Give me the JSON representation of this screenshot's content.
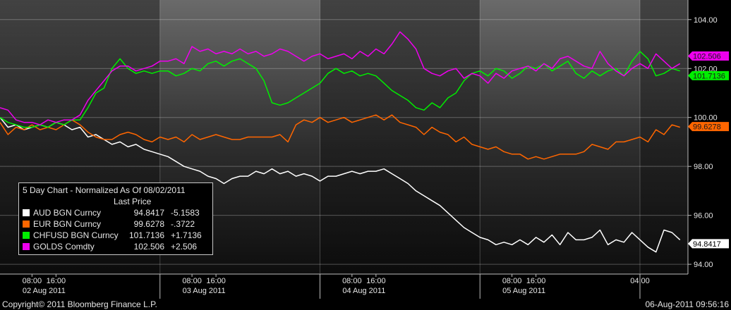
{
  "chart_data": {
    "type": "line",
    "title": "5 Day Chart - Normalized As Of 08/02/2011",
    "subtitle": "Last Price",
    "ylim": [
      93.6,
      104.8
    ],
    "y_ticks": [
      "94.00",
      "96.00",
      "98.00",
      "100.00",
      "102.00",
      "104.00"
    ],
    "y_tick_values": [
      94,
      96,
      98,
      100,
      102,
      104
    ],
    "x_label_top": [
      "08:00",
      "16:00",
      "08:00",
      "16:00",
      "08:00",
      "16:00",
      "08:00",
      "16:00",
      "04:00"
    ],
    "x_label_top_t": [
      2.0,
      3.5,
      12.0,
      13.5,
      22.0,
      23.5,
      32.0,
      33.5,
      40.0
    ],
    "x_label_days": [
      "02 Aug 2011",
      "03 Aug 2011",
      "04 Aug 2011",
      "05 Aug 2011"
    ],
    "x_label_days_t": [
      2.75,
      12.75,
      22.75,
      32.75
    ],
    "session_bands": [
      [
        0,
        10
      ],
      [
        20,
        30
      ],
      [
        40,
        43
      ]
    ],
    "day_boundaries": [
      10,
      20,
      30,
      40
    ],
    "grid": true,
    "legend_position": "bottom-left",
    "series": [
      {
        "name": "AUD BGN Curncy",
        "color": "#ffffff",
        "price": "94.8417",
        "change": "-5.1583",
        "label": "94.8417",
        "t": [
          0,
          0.5,
          1,
          1.5,
          2,
          2.5,
          3,
          3.5,
          4,
          4.5,
          5,
          5.5,
          6,
          6.5,
          7,
          7.5,
          8,
          8.5,
          9,
          9.5,
          10,
          10.5,
          11,
          11.5,
          12,
          12.5,
          13,
          13.5,
          14,
          14.5,
          15,
          15.5,
          16,
          16.5,
          17,
          17.5,
          18,
          18.5,
          19,
          19.5,
          20,
          20.5,
          21,
          21.5,
          22,
          22.5,
          23,
          23.5,
          24,
          24.5,
          25,
          25.5,
          26,
          26.5,
          27,
          27.5,
          28,
          28.5,
          29,
          29.5,
          30,
          30.5,
          31,
          31.5,
          32,
          32.5,
          33,
          33.5,
          34,
          34.5,
          35,
          35.5,
          36,
          36.5,
          37,
          37.5,
          38,
          38.5,
          39,
          39.5,
          40,
          40.5,
          41,
          41.5,
          42,
          42.5
        ],
        "v": [
          100.0,
          99.6,
          99.7,
          99.5,
          99.6,
          99.7,
          99.6,
          99.8,
          99.7,
          99.5,
          99.6,
          99.2,
          99.3,
          99.1,
          98.9,
          99.0,
          98.8,
          98.9,
          98.7,
          98.6,
          98.5,
          98.4,
          98.2,
          98.0,
          97.9,
          97.8,
          97.6,
          97.5,
          97.3,
          97.5,
          97.6,
          97.6,
          97.8,
          97.7,
          97.9,
          97.7,
          97.8,
          97.6,
          97.7,
          97.6,
          97.4,
          97.6,
          97.6,
          97.7,
          97.8,
          97.7,
          97.8,
          97.8,
          97.9,
          97.7,
          97.5,
          97.3,
          97.0,
          96.8,
          96.6,
          96.4,
          96.1,
          95.8,
          95.5,
          95.3,
          95.1,
          95.0,
          94.8,
          94.9,
          94.8,
          95.0,
          94.8,
          95.1,
          94.9,
          95.2,
          94.8,
          95.3,
          95.0,
          95.0,
          95.1,
          95.4,
          94.8,
          95.0,
          94.9,
          95.3,
          95.0,
          94.7,
          94.5,
          95.4,
          95.3,
          95.0,
          94.9,
          94.84
        ]
      },
      {
        "name": "EUR BGN Curncy",
        "color": "#ff6600",
        "price": "99.6278",
        "change": "-.3722",
        "label": "99.6278",
        "t": [
          0,
          0.5,
          1,
          1.5,
          2,
          2.5,
          3,
          3.5,
          4,
          4.5,
          5,
          5.5,
          6,
          6.5,
          7,
          7.5,
          8,
          8.5,
          9,
          9.5,
          10,
          10.5,
          11,
          11.5,
          12,
          12.5,
          13,
          13.5,
          14,
          14.5,
          15,
          15.5,
          16,
          16.5,
          17,
          17.5,
          18,
          18.5,
          19,
          19.5,
          20,
          20.5,
          21,
          21.5,
          22,
          22.5,
          23,
          23.5,
          24,
          24.5,
          25,
          25.5,
          26,
          26.5,
          27,
          27.5,
          28,
          28.5,
          29,
          29.5,
          30,
          30.5,
          31,
          31.5,
          32,
          32.5,
          33,
          33.5,
          34,
          34.5,
          35,
          35.5,
          36,
          36.5,
          37,
          37.5,
          38,
          38.5,
          39,
          39.5,
          40,
          40.5,
          41,
          41.5,
          42,
          42.5
        ],
        "v": [
          99.8,
          99.3,
          99.6,
          99.5,
          99.7,
          99.5,
          99.6,
          99.5,
          99.7,
          99.9,
          99.7,
          99.4,
          99.2,
          99.1,
          99.1,
          99.3,
          99.4,
          99.3,
          99.1,
          99.0,
          99.2,
          99.1,
          99.2,
          99.0,
          99.3,
          99.1,
          99.2,
          99.3,
          99.2,
          99.1,
          99.1,
          99.2,
          99.2,
          99.2,
          99.2,
          99.3,
          99.0,
          99.7,
          99.9,
          99.8,
          100.0,
          99.8,
          99.9,
          100.0,
          99.8,
          99.9,
          100.0,
          100.1,
          99.9,
          100.1,
          99.8,
          99.7,
          99.6,
          99.3,
          99.6,
          99.4,
          99.3,
          99.0,
          99.2,
          98.9,
          98.8,
          98.7,
          98.8,
          98.6,
          98.5,
          98.5,
          98.3,
          98.4,
          98.3,
          98.4,
          98.5,
          98.5,
          98.5,
          98.6,
          98.9,
          98.8,
          98.7,
          99.0,
          99.0,
          99.1,
          99.2,
          99.0,
          99.5,
          99.3,
          99.7,
          99.6,
          99.7,
          99.63
        ]
      },
      {
        "name": "CHFUSD BGN Curncy",
        "color": "#00ee00",
        "price": "101.7136",
        "change": "+1.7136",
        "label": "101.7136",
        "t": [
          0,
          0.5,
          1,
          1.5,
          2,
          2.5,
          3,
          3.5,
          4,
          4.5,
          5,
          5.5,
          6,
          6.5,
          7,
          7.5,
          8,
          8.5,
          9,
          9.5,
          10,
          10.5,
          11,
          11.5,
          12,
          12.5,
          13,
          13.5,
          14,
          14.5,
          15,
          15.5,
          16,
          16.5,
          17,
          17.5,
          18,
          18.5,
          19,
          19.5,
          20,
          20.5,
          21,
          21.5,
          22,
          22.5,
          23,
          23.5,
          24,
          24.5,
          25,
          25.5,
          26,
          26.5,
          27,
          27.5,
          28,
          28.5,
          29,
          29.5,
          30,
          30.5,
          31,
          31.5,
          32,
          32.5,
          33,
          33.5,
          34,
          34.5,
          35,
          35.5,
          36,
          36.5,
          37,
          37.5,
          38,
          38.5,
          39,
          39.5,
          40,
          40.5,
          41,
          41.5,
          42,
          42.5
        ],
        "v": [
          100.0,
          99.8,
          99.7,
          99.6,
          99.6,
          99.7,
          99.6,
          99.8,
          99.7,
          99.9,
          99.9,
          100.4,
          101.0,
          101.2,
          102.0,
          102.4,
          102.0,
          101.8,
          101.9,
          101.8,
          101.9,
          101.9,
          101.7,
          101.8,
          102.0,
          101.9,
          102.2,
          102.3,
          102.1,
          102.3,
          102.4,
          102.2,
          102.0,
          101.5,
          100.6,
          100.5,
          100.6,
          100.8,
          101.0,
          101.2,
          101.4,
          101.8,
          102.0,
          101.8,
          101.9,
          101.7,
          101.8,
          101.7,
          101.4,
          101.1,
          100.9,
          100.7,
          100.4,
          100.3,
          100.6,
          100.4,
          100.8,
          101.0,
          101.5,
          101.8,
          101.9,
          101.7,
          102.0,
          101.9,
          101.6,
          101.8,
          102.1,
          102.0,
          102.2,
          101.9,
          102.1,
          102.3,
          101.8,
          101.6,
          101.9,
          101.7,
          101.9,
          102.0,
          101.7,
          102.3,
          102.7,
          102.4,
          101.7,
          101.8,
          102.0,
          101.9,
          101.8,
          101.71
        ]
      },
      {
        "name": "GOLDS Comdty",
        "color": "#ee00ee",
        "price": "102.506",
        "change": "+2.506",
        "label": "102.506",
        "t": [
          0,
          0.5,
          1,
          1.5,
          2,
          2.5,
          3,
          3.5,
          4,
          4.5,
          5,
          5.5,
          6,
          6.5,
          7,
          7.5,
          8,
          8.5,
          9,
          9.5,
          10,
          10.5,
          11,
          11.5,
          12,
          12.5,
          13,
          13.5,
          14,
          14.5,
          15,
          15.5,
          16,
          16.5,
          17,
          17.5,
          18,
          18.5,
          19,
          19.5,
          20,
          20.5,
          21,
          21.5,
          22,
          22.5,
          23,
          23.5,
          24,
          24.5,
          25,
          25.5,
          26,
          26.5,
          27,
          27.5,
          28,
          28.5,
          29,
          29.5,
          30,
          30.5,
          31,
          31.5,
          32,
          32.5,
          33,
          33.5,
          34,
          34.5,
          35,
          35.5,
          36,
          36.5,
          37,
          37.5,
          38,
          38.5,
          39,
          39.5,
          40,
          40.5,
          41,
          41.5,
          42,
          42.5
        ],
        "v": [
          100.4,
          100.3,
          99.9,
          99.8,
          99.8,
          99.7,
          99.9,
          99.8,
          99.9,
          99.9,
          100.1,
          100.7,
          101.1,
          101.5,
          101.9,
          102.1,
          102.1,
          101.9,
          102.0,
          102.1,
          102.3,
          102.3,
          102.4,
          102.2,
          102.9,
          102.7,
          102.8,
          102.6,
          102.7,
          102.6,
          102.8,
          102.6,
          102.7,
          102.5,
          102.6,
          102.8,
          102.7,
          102.5,
          102.3,
          102.5,
          102.6,
          102.4,
          102.5,
          102.6,
          102.4,
          102.7,
          102.5,
          102.8,
          102.6,
          103.0,
          103.5,
          103.2,
          102.8,
          102.0,
          101.8,
          101.7,
          101.9,
          102.0,
          101.6,
          101.8,
          101.7,
          101.4,
          101.8,
          101.6,
          101.9,
          102.0,
          102.1,
          101.9,
          102.2,
          102.0,
          102.4,
          102.5,
          102.3,
          102.1,
          102.0,
          102.7,
          102.2,
          101.9,
          101.7,
          102.0,
          102.2,
          102.0,
          102.6,
          102.3,
          102.0,
          102.2,
          102.4,
          102.51
        ]
      }
    ]
  },
  "footer": {
    "copyright": "Copyright© 2011 Bloomberg Finance L.P.",
    "timestamp": "06-Aug-2011 09:56:16"
  }
}
